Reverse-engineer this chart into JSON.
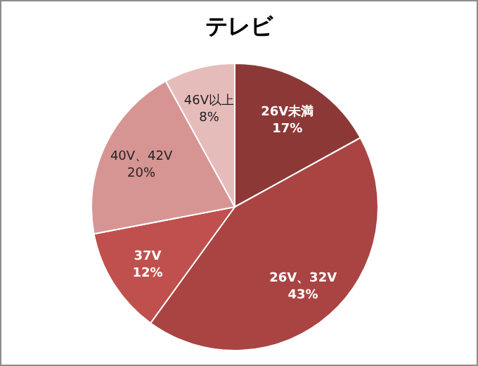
{
  "chart_data": {
    "type": "pie",
    "title": "テレビ",
    "categories": [
      "26V未満",
      "26V、32V",
      "37V",
      "40V、42V",
      "46V以上"
    ],
    "values": [
      17,
      43,
      12,
      20,
      8
    ],
    "value_labels": [
      "17%",
      "43%",
      "12%",
      "20%",
      "8%"
    ],
    "colors": [
      "#8c3836",
      "#a94442",
      "#c0504d",
      "#d69593",
      "#e6bcbb"
    ]
  }
}
